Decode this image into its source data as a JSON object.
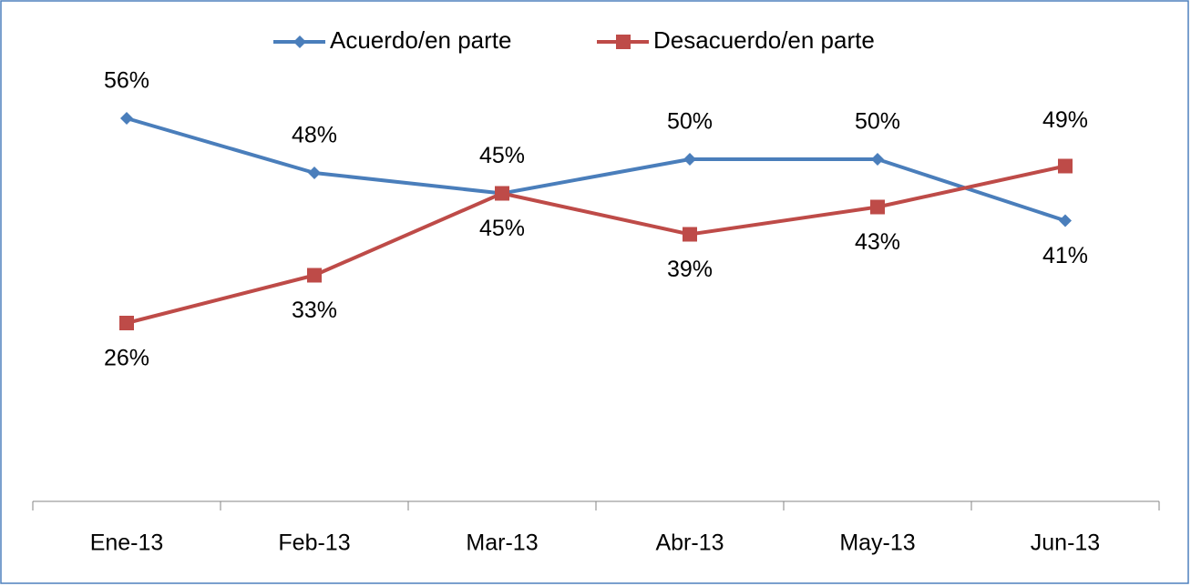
{
  "chart_data": {
    "type": "line",
    "categories": [
      "Ene-13",
      "Feb-13",
      "Mar-13",
      "Abr-13",
      "May-13",
      "Jun-13"
    ],
    "series": [
      {
        "name": "Acuerdo/en parte",
        "color": "#4a7ebb",
        "values": [
          56,
          48,
          45,
          50,
          50,
          41
        ],
        "value_labels": [
          "56%",
          "48%",
          "45%",
          "50%",
          "50%",
          "41%"
        ]
      },
      {
        "name": "Desacuerdo/en parte",
        "color": "#be4b48",
        "values": [
          26,
          33,
          45,
          39,
          43,
          49
        ],
        "value_labels": [
          "26%",
          "33%",
          "45%",
          "39%",
          "43%",
          "49%"
        ]
      }
    ],
    "ylim": [
      0,
      60
    ],
    "legend": "top"
  }
}
